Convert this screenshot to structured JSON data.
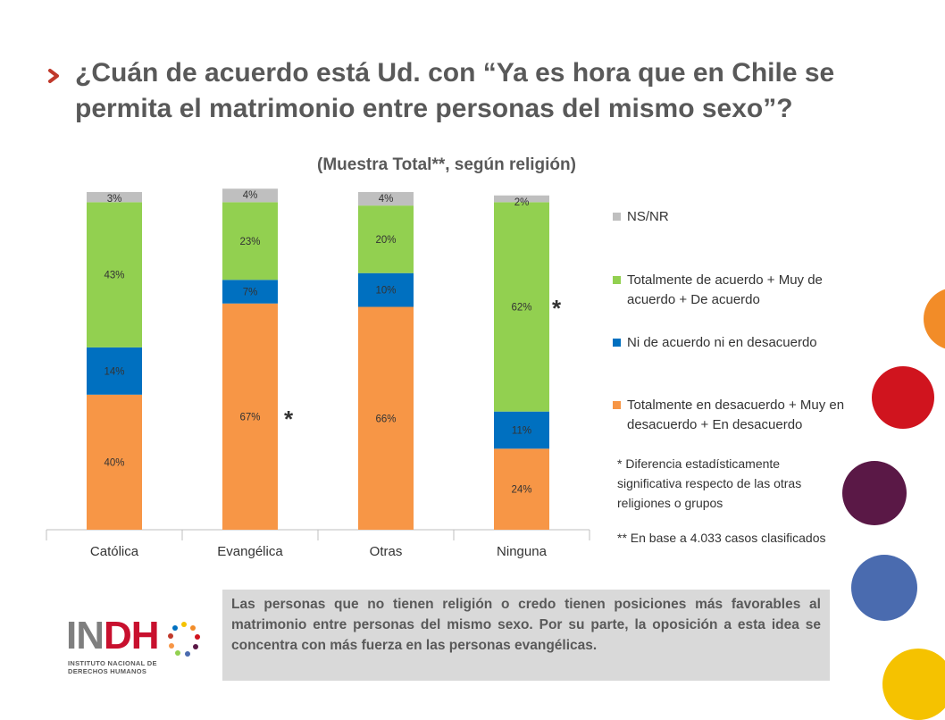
{
  "header": {
    "title": "¿Cuán de acuerdo está Ud. con “Ya es hora que en Chile se permita el matrimonio entre personas del mismo sexo”?",
    "subtitle": "(Muestra Total**, según religión)"
  },
  "chart_data": {
    "type": "bar",
    "stacked": true,
    "categories": [
      "Católica",
      "Evangélica",
      "Otras",
      "Ninguna"
    ],
    "series": [
      {
        "name": "Totalmente en desacuerdo + Muy en desacuerdo + En desacuerdo",
        "color": "#F79646",
        "values": [
          40,
          67,
          66,
          24
        ],
        "labels": [
          "40%",
          "67%",
          "66%",
          "24%"
        ]
      },
      {
        "name": "Ni de acuerdo ni en desacuerdo",
        "color": "#0070C0",
        "values": [
          14,
          7,
          10,
          11
        ],
        "labels": [
          "14%",
          "7%",
          "10%",
          "11%"
        ]
      },
      {
        "name": "Totalmente de acuerdo + Muy de acuerdo + De acuerdo",
        "color": "#92D050",
        "values": [
          43,
          23,
          20,
          62
        ],
        "labels": [
          "43%",
          "23%",
          "20%",
          "62%"
        ]
      },
      {
        "name": "NS/NR",
        "color": "#BFBFBF",
        "values": [
          3,
          4,
          4,
          2
        ],
        "labels": [
          "3%",
          "4%",
          "4%",
          "2%"
        ]
      }
    ],
    "ylim": [
      0,
      100
    ],
    "grid": false,
    "legend_position": "right",
    "significance_marker": "*",
    "significant_categories": [
      "Evangélica",
      "Ninguna"
    ]
  },
  "legend": [
    {
      "label": "NS/NR",
      "color": "#BFBFBF"
    },
    {
      "label": "Totalmente de acuerdo + Muy de acuerdo + De acuerdo",
      "color": "#92D050"
    },
    {
      "label": "Ni de acuerdo ni en desacuerdo",
      "color": "#0070C0"
    },
    {
      "label": "Totalmente en desacuerdo + Muy en desacuerdo + En desacuerdo",
      "color": "#F79646"
    }
  ],
  "notes": {
    "significance": "* Diferencia estadísticamente significativa respecto de las otras religiones o grupos",
    "base": "** En base a 4.033 casos clasificados",
    "star": "*"
  },
  "callout": {
    "text": "Las personas que no tienen religión o credo tienen posiciones más favorables al matrimonio entre personas del mismo sexo. Por su parte, la oposición a esta idea se concentra con más fuerza en las personas evangélicas."
  },
  "logo": {
    "main_prefix": "IN",
    "main_accent": "DH",
    "sub_line1": "INSTITUTO NACIONAL DE",
    "sub_line2": "DERECHOS HUMANOS"
  },
  "colors": {
    "title_arrow": "#C0392B",
    "deco_orange": "#F28C28",
    "deco_red": "#D0141E",
    "deco_purple": "#5A1846",
    "deco_blue": "#4A6BAF",
    "deco_yellow": "#F5C200"
  }
}
